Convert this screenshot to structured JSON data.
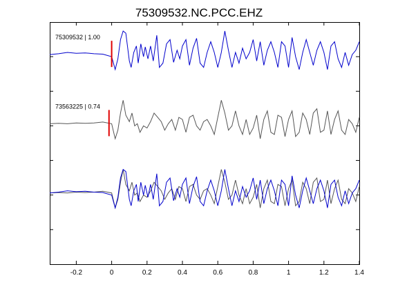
{
  "chart_data": {
    "type": "line",
    "title": "75309532.NC.PCC.EHZ",
    "xlabel": "",
    "ylabel": "",
    "xlim": [
      -0.35,
      1.4
    ],
    "x_ticks": [
      "-0.2",
      "0",
      "0.2",
      "0.4",
      "0.6",
      "0.8",
      "1",
      "1.2",
      "1.4"
    ],
    "x_tick_values": [
      -0.2,
      0,
      0.2,
      0.4,
      0.6,
      0.8,
      1.0,
      1.2,
      1.4
    ],
    "y_tick_count": 7,
    "grid": false,
    "pick_color": "#e00000",
    "colors": {
      "primary": "#0000cc",
      "secondary": "#555555",
      "pick": "#e00000"
    },
    "traces": [
      {
        "label": "75309532 | 1.00",
        "color": "#0000cc",
        "pick_time": 0.0,
        "offset": 1,
        "points": [
          [
            -0.35,
            0.0
          ],
          [
            -0.3,
            0.02
          ],
          [
            -0.25,
            0.05
          ],
          [
            -0.2,
            0.03
          ],
          [
            -0.15,
            0.04
          ],
          [
            -0.1,
            0.02
          ],
          [
            -0.05,
            0.01
          ],
          [
            0.0,
            -0.05
          ],
          [
            0.02,
            -0.35
          ],
          [
            0.035,
            -0.1
          ],
          [
            0.05,
            0.35
          ],
          [
            0.065,
            0.55
          ],
          [
            0.08,
            0.5
          ],
          [
            0.1,
            -0.15
          ],
          [
            0.11,
            -0.3
          ],
          [
            0.125,
            0.05
          ],
          [
            0.14,
            0.2
          ],
          [
            0.15,
            -0.2
          ],
          [
            0.165,
            0.25
          ],
          [
            0.18,
            -0.05
          ],
          [
            0.19,
            0.18
          ],
          [
            0.205,
            -0.1
          ],
          [
            0.22,
            0.2
          ],
          [
            0.235,
            -0.15
          ],
          [
            0.255,
            0.45
          ],
          [
            0.27,
            -0.3
          ],
          [
            0.29,
            -0.2
          ],
          [
            0.31,
            0.25
          ],
          [
            0.33,
            0.35
          ],
          [
            0.35,
            -0.18
          ],
          [
            0.37,
            0.1
          ],
          [
            0.385,
            -0.1
          ],
          [
            0.4,
            0.2
          ],
          [
            0.42,
            0.35
          ],
          [
            0.44,
            -0.25
          ],
          [
            0.46,
            0.15
          ],
          [
            0.48,
            0.38
          ],
          [
            0.5,
            -0.2
          ],
          [
            0.52,
            -0.3
          ],
          [
            0.54,
            0.05
          ],
          [
            0.56,
            0.3
          ],
          [
            0.58,
            0.05
          ],
          [
            0.6,
            -0.3
          ],
          [
            0.62,
            0.05
          ],
          [
            0.64,
            0.55
          ],
          [
            0.66,
            0.1
          ],
          [
            0.68,
            -0.3
          ],
          [
            0.7,
            0.05
          ],
          [
            0.72,
            -0.2
          ],
          [
            0.74,
            0.15
          ],
          [
            0.76,
            -0.1
          ],
          [
            0.78,
            0.05
          ],
          [
            0.8,
            0.35
          ],
          [
            0.82,
            -0.15
          ],
          [
            0.84,
            0.3
          ],
          [
            0.86,
            -0.25
          ],
          [
            0.88,
            0.1
          ],
          [
            0.9,
            0.3
          ],
          [
            0.92,
            0.05
          ],
          [
            0.94,
            -0.3
          ],
          [
            0.96,
            0.3
          ],
          [
            0.98,
            0.2
          ],
          [
            1.0,
            -0.3
          ],
          [
            1.02,
            0.4
          ],
          [
            1.04,
            -0.05
          ],
          [
            1.06,
            -0.35
          ],
          [
            1.08,
            0.05
          ],
          [
            1.1,
            0.35
          ],
          [
            1.12,
            0.05
          ],
          [
            1.14,
            -0.25
          ],
          [
            1.16,
            0.1
          ],
          [
            1.18,
            0.3
          ],
          [
            1.2,
            0.05
          ],
          [
            1.22,
            -0.35
          ],
          [
            1.24,
            0.2
          ],
          [
            1.26,
            0.3
          ],
          [
            1.28,
            -0.1
          ],
          [
            1.3,
            -0.3
          ],
          [
            1.32,
            0.05
          ],
          [
            1.34,
            -0.25
          ],
          [
            1.36,
            0.0
          ],
          [
            1.38,
            0.1
          ],
          [
            1.4,
            0.3
          ]
        ]
      },
      {
        "label": "73563225 | 0.74",
        "color": "#555555",
        "pick_time": -0.015,
        "offset": 3,
        "points": [
          [
            -0.35,
            0.0
          ],
          [
            -0.3,
            0.01
          ],
          [
            -0.25,
            0.0
          ],
          [
            -0.2,
            0.02
          ],
          [
            -0.15,
            0.01
          ],
          [
            -0.1,
            0.02
          ],
          [
            -0.05,
            0.04
          ],
          [
            0.0,
            0.0
          ],
          [
            0.02,
            -0.35
          ],
          [
            0.035,
            -0.15
          ],
          [
            0.05,
            0.25
          ],
          [
            0.065,
            0.55
          ],
          [
            0.08,
            0.2
          ],
          [
            0.1,
            0.05
          ],
          [
            0.115,
            0.25
          ],
          [
            0.13,
            -0.05
          ],
          [
            0.145,
            0.0
          ],
          [
            0.16,
            -0.2
          ],
          [
            0.18,
            -0.05
          ],
          [
            0.2,
            -0.1
          ],
          [
            0.22,
            0.05
          ],
          [
            0.24,
            0.25
          ],
          [
            0.26,
            0.15
          ],
          [
            0.28,
            0.05
          ],
          [
            0.3,
            -0.15
          ],
          [
            0.32,
            0.0
          ],
          [
            0.34,
            0.1
          ],
          [
            0.36,
            -0.15
          ],
          [
            0.38,
            0.15
          ],
          [
            0.4,
            0.1
          ],
          [
            0.42,
            -0.2
          ],
          [
            0.44,
            0.15
          ],
          [
            0.46,
            0.2
          ],
          [
            0.48,
            -0.05
          ],
          [
            0.5,
            -0.15
          ],
          [
            0.52,
            0.05
          ],
          [
            0.54,
            0.1
          ],
          [
            0.56,
            -0.05
          ],
          [
            0.58,
            -0.25
          ],
          [
            0.6,
            0.15
          ],
          [
            0.62,
            0.55
          ],
          [
            0.64,
            0.25
          ],
          [
            0.66,
            -0.15
          ],
          [
            0.68,
            -0.05
          ],
          [
            0.7,
            0.3
          ],
          [
            0.72,
            -0.05
          ],
          [
            0.74,
            -0.25
          ],
          [
            0.76,
            0.1
          ],
          [
            0.78,
            -0.25
          ],
          [
            0.8,
            -0.1
          ],
          [
            0.82,
            0.2
          ],
          [
            0.84,
            -0.35
          ],
          [
            0.86,
            0.1
          ],
          [
            0.88,
            0.3
          ],
          [
            0.9,
            -0.2
          ],
          [
            0.92,
            -0.25
          ],
          [
            0.94,
            0.2
          ],
          [
            0.96,
            0.15
          ],
          [
            0.98,
            -0.3
          ],
          [
            1.0,
            0.1
          ],
          [
            1.02,
            0.3
          ],
          [
            1.04,
            -0.3
          ],
          [
            1.06,
            -0.2
          ],
          [
            1.08,
            0.25
          ],
          [
            1.1,
            0.1
          ],
          [
            1.12,
            -0.25
          ],
          [
            1.14,
            0.25
          ],
          [
            1.16,
            0.35
          ],
          [
            1.18,
            -0.2
          ],
          [
            1.2,
            -0.15
          ],
          [
            1.22,
            0.3
          ],
          [
            1.24,
            -0.25
          ],
          [
            1.26,
            0.1
          ],
          [
            1.28,
            0.3
          ],
          [
            1.3,
            -0.15
          ],
          [
            1.32,
            -0.25
          ],
          [
            1.34,
            0.1
          ],
          [
            1.36,
            0.0
          ],
          [
            1.38,
            -0.2
          ],
          [
            1.4,
            0.15
          ]
        ]
      }
    ],
    "overlay": {
      "offset": 5,
      "traces": [
        "73563225 | 0.74",
        "75309532 | 1.00"
      ],
      "colors": [
        "#555555",
        "#0000cc"
      ]
    }
  }
}
